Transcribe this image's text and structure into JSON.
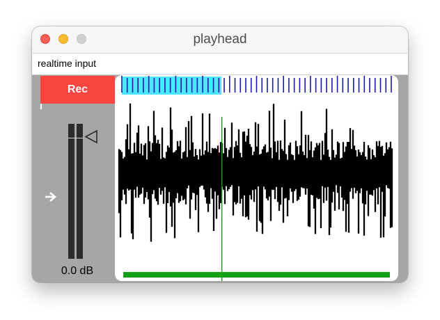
{
  "window": {
    "title": "playhead"
  },
  "input_bar": {
    "label": "realtime input"
  },
  "controls": {
    "rec_label": "Rec",
    "gain_readout": "0.0 dB"
  },
  "playhead": {
    "position_fraction": 0.37
  },
  "selection": {
    "start_fraction": 0.0,
    "end_fraction": 0.37
  },
  "colors": {
    "rec": "#fa4640",
    "selection": "#4ce6ff",
    "ruler_ticks": "#1a1ab0",
    "waveform": "#000000",
    "playhead_line": "#14a014",
    "loop_bar": "#14a014",
    "panel_bg": "#a6a6a6"
  },
  "icons": {
    "close": "close-icon",
    "minimize": "minimize-icon",
    "zoom": "zoom-icon",
    "input_arrow": "arrow-right-icon",
    "gain_handle": "triangle-left-icon"
  }
}
